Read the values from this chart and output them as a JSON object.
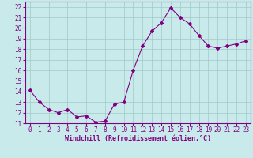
{
  "x": [
    0,
    1,
    2,
    3,
    4,
    5,
    6,
    7,
    8,
    9,
    10,
    11,
    12,
    13,
    14,
    15,
    16,
    17,
    18,
    19,
    20,
    21,
    22,
    23
  ],
  "y": [
    14.1,
    13.0,
    12.3,
    12.0,
    12.3,
    11.6,
    11.7,
    11.1,
    11.2,
    12.8,
    13.0,
    16.0,
    18.3,
    19.7,
    20.5,
    21.9,
    21.0,
    20.4,
    19.3,
    18.3,
    18.1,
    18.3,
    18.5,
    18.8
  ],
  "line_color": "#800080",
  "marker": "D",
  "marker_size": 2,
  "bg_color": "#c8eaea",
  "grid_color": "#a0c8c8",
  "xlabel": "Windchill (Refroidissement éolien,°C)",
  "xlabel_color": "#800080",
  "ylim": [
    11,
    22.5
  ],
  "yticks": [
    11,
    12,
    13,
    14,
    15,
    16,
    17,
    18,
    19,
    20,
    21,
    22
  ],
  "xticks": [
    0,
    1,
    2,
    3,
    4,
    5,
    6,
    7,
    8,
    9,
    10,
    11,
    12,
    13,
    14,
    15,
    16,
    17,
    18,
    19,
    20,
    21,
    22,
    23
  ],
  "tick_color": "#800080",
  "tick_fontsize": 5.5,
  "xlabel_fontsize": 6.0
}
